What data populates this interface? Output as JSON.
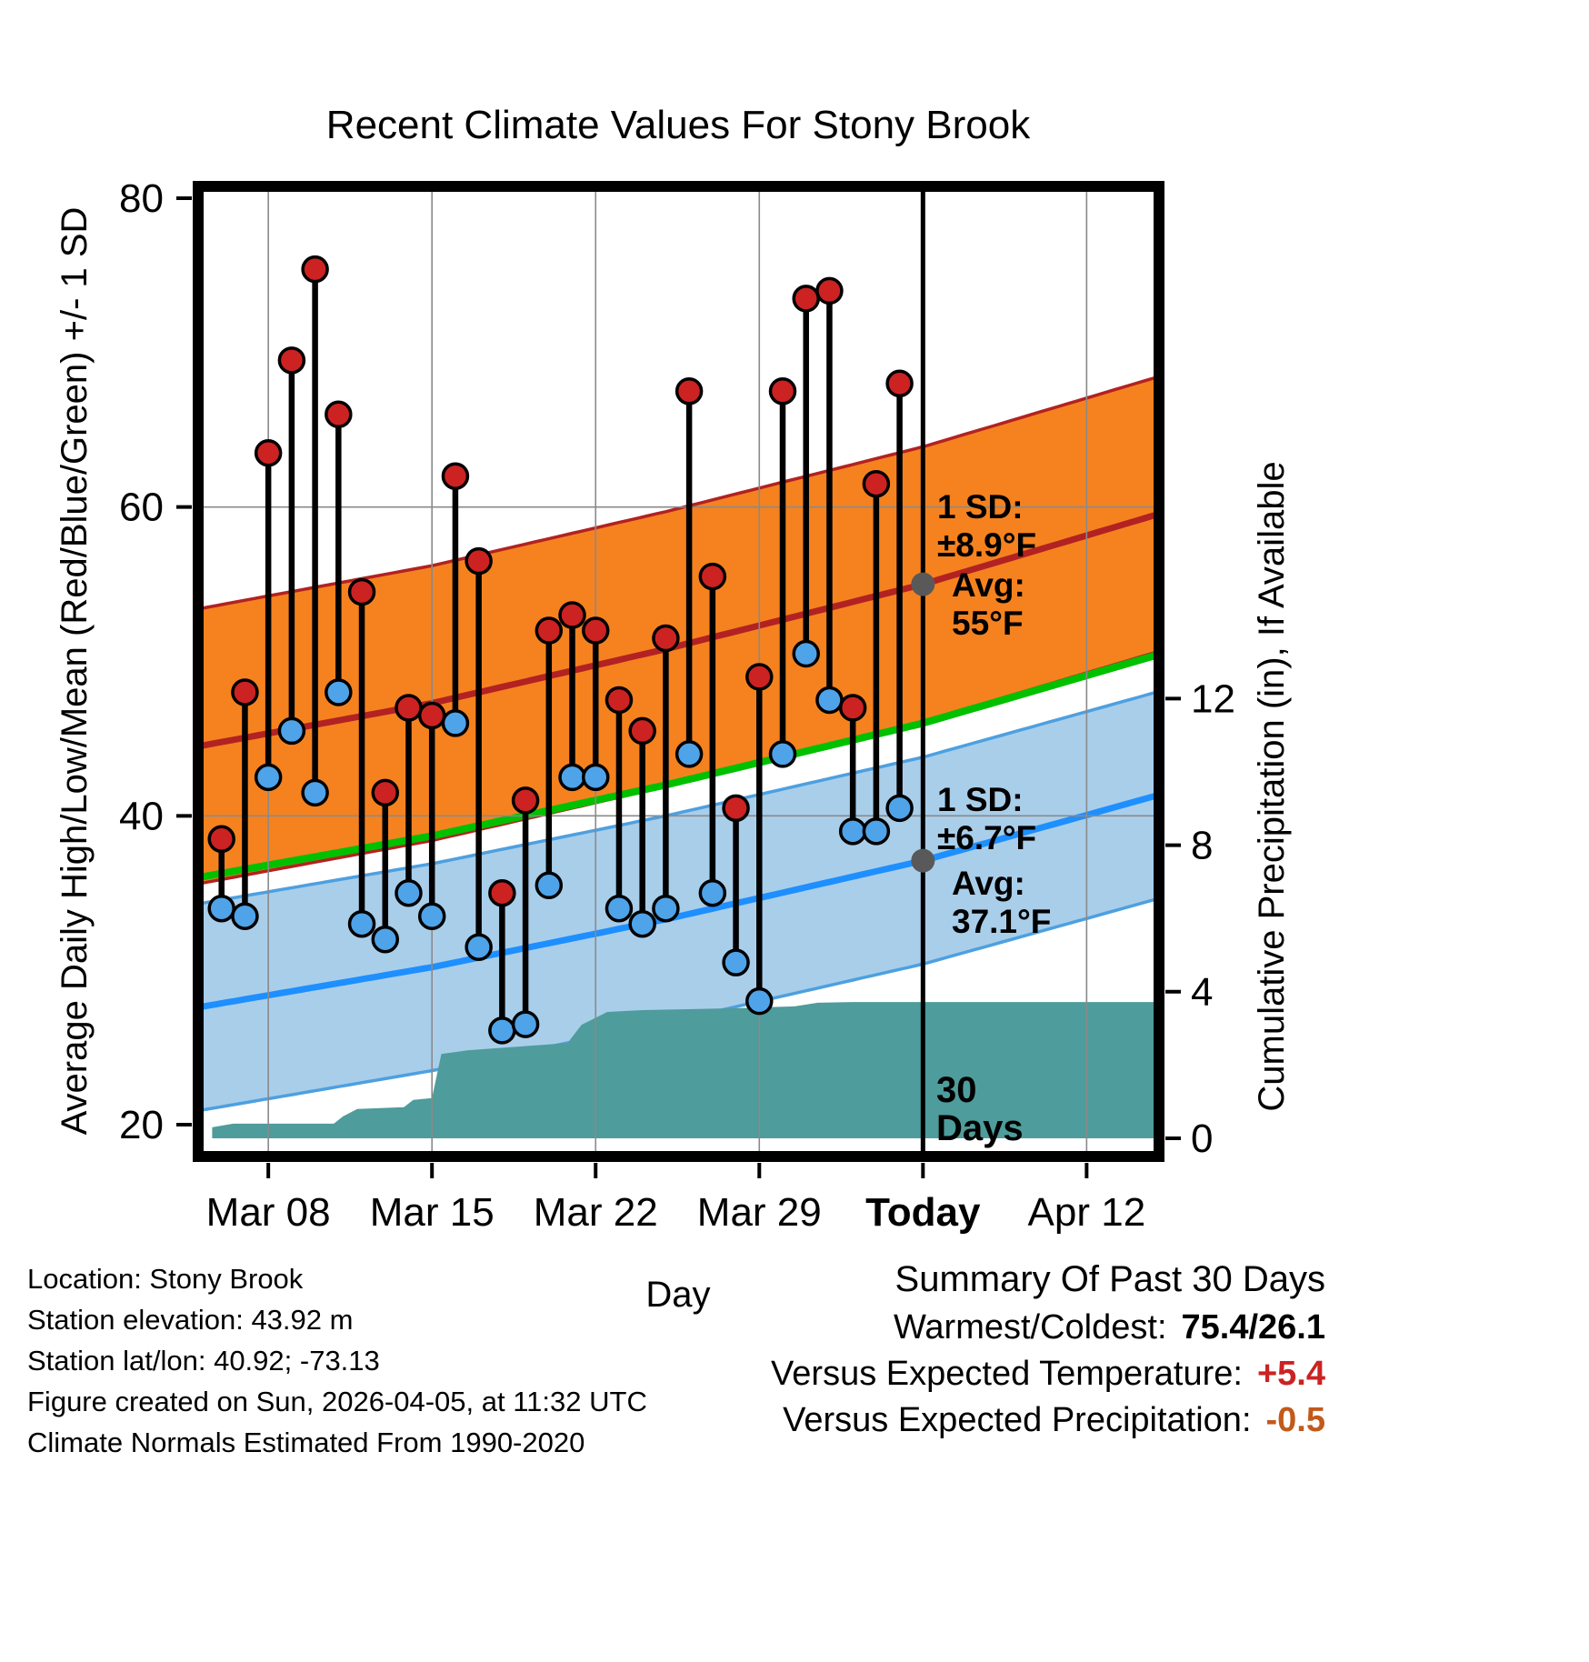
{
  "chart_data": {
    "type": "line",
    "title": "Recent Climate Values For Stony Brook",
    "xlabel": "Day",
    "ylabel_left": "Average Daily High/Low/Mean (Red/Blue/Green) +/- 1 SD",
    "ylabel_right": "Cumulative Precipitation (in), If Available",
    "temp_axis_range": [
      18,
      81
    ],
    "precip_axis_range": [
      0,
      13
    ],
    "left_ticks": [
      "20",
      "40",
      "60",
      "80"
    ],
    "right_ticks": [
      "0",
      "4",
      "8",
      "12"
    ],
    "x_ticks": [
      {
        "day": 3,
        "label": "Mar 08",
        "bold": false
      },
      {
        "day": 10,
        "label": "Mar 15",
        "bold": false
      },
      {
        "day": 17,
        "label": "Mar 22",
        "bold": false
      },
      {
        "day": 24,
        "label": "Mar 29",
        "bold": false
      },
      {
        "day": 31,
        "label": "Today",
        "bold": true
      },
      {
        "day": 38,
        "label": "Apr 12",
        "bold": false
      }
    ],
    "daily": {
      "days": [
        1,
        2,
        3,
        4,
        5,
        6,
        7,
        8,
        9,
        10,
        11,
        12,
        13,
        14,
        15,
        16,
        17,
        18,
        19,
        20,
        21,
        22,
        23,
        24,
        25,
        26,
        27,
        28,
        29,
        30
      ],
      "high": [
        38.5,
        48,
        63.5,
        69.5,
        75.4,
        66,
        54.5,
        41.5,
        47,
        46.5,
        62,
        56.5,
        35,
        41,
        52,
        53,
        52,
        47.5,
        45.5,
        51.5,
        67.5,
        55.5,
        40.5,
        49,
        67.5,
        73.5,
        74,
        47,
        61.5,
        68
      ],
      "low": [
        34,
        33.5,
        42.5,
        45.5,
        41.5,
        48,
        33,
        32,
        35,
        33.5,
        46,
        31.5,
        26.1,
        26.5,
        35.5,
        42.5,
        42.5,
        34,
        33,
        34,
        44,
        35,
        30.5,
        28,
        44,
        50.5,
        47.5,
        39,
        39,
        40.5
      ]
    },
    "normals": {
      "high_sd": 8.9,
      "low_sd": 6.7,
      "high_avg_points": [
        [
          0,
          44.5
        ],
        [
          10,
          47.3
        ],
        [
          20,
          50.8
        ],
        [
          31,
          55.0
        ],
        [
          41.2,
          59.6
        ]
      ],
      "low_avg_points": [
        [
          0,
          27.6
        ],
        [
          10,
          30.2
        ],
        [
          20,
          33.3
        ],
        [
          31,
          37.1
        ],
        [
          41.2,
          41.4
        ]
      ],
      "mean_points": [
        [
          0,
          36.0
        ],
        [
          10,
          38.7
        ],
        [
          20,
          42.0
        ],
        [
          31,
          46.0
        ],
        [
          41.2,
          50.5
        ]
      ]
    },
    "precip_cumulative": [
      [
        0.6,
        0.3
      ],
      [
        1.5,
        0.4
      ],
      [
        5.8,
        0.4
      ],
      [
        6.2,
        0.6
      ],
      [
        6.8,
        0.8
      ],
      [
        8.8,
        0.85
      ],
      [
        9.2,
        1.05
      ],
      [
        10.0,
        1.1
      ],
      [
        10.4,
        2.3
      ],
      [
        11.5,
        2.4
      ],
      [
        15.8,
        2.6
      ],
      [
        16.4,
        3.1
      ],
      [
        17.5,
        3.45
      ],
      [
        19,
        3.5
      ],
      [
        23,
        3.55
      ],
      [
        25.5,
        3.6
      ],
      [
        26.5,
        3.7
      ],
      [
        28,
        3.72
      ],
      [
        41.2,
        3.72
      ]
    ],
    "annotations": {
      "high": {
        "sd_lines": [
          "1 SD:",
          "±8.9°F"
        ],
        "avg_lines": [
          "Avg:",
          "55°F"
        ],
        "avg_value": 55
      },
      "low": {
        "sd_lines": [
          "1 SD:",
          "±6.7°F"
        ],
        "avg_lines": [
          "Avg:",
          "37.1°F"
        ],
        "avg_value": 37.1
      },
      "period_lines": [
        "30",
        "Days"
      ]
    }
  },
  "footer_left": [
    "Location: Stony Brook",
    "Station elevation: 43.92 m",
    "Station lat/lon: 40.92; -73.13",
    "Figure created on Sun, 2026-04-05, at 11:32 UTC",
    "Climate Normals Estimated From 1990-2020"
  ],
  "summary": {
    "title": "Summary Of Past 30 Days",
    "rows": [
      {
        "label": "Warmest/Coldest:",
        "value": "75.4/26.1",
        "value_color": "#000000"
      },
      {
        "label": "Versus Expected Temperature:",
        "value": "+5.4",
        "value_color": "#CC2222"
      },
      {
        "label": "Versus Expected Precipitation:",
        "value": "-0.5",
        "value_color": "#C25A1A"
      }
    ]
  },
  "colors": {
    "high_band": "#F5821F",
    "high_band_edge": "#B22222",
    "high_line": "#B22222",
    "mean_line": "#00C000",
    "low_band": "#A9CEEA",
    "low_band_edge": "#4DA0E0",
    "low_line": "#1E8FFF",
    "precip_fill": "#4E9C9C",
    "high_dot": "#CC2222",
    "low_dot": "#4FA3E8",
    "stem": "#000000",
    "grid": "#8A8A8A",
    "today_line": "#000000",
    "annotation": "#6E6E6E",
    "marker": "#595959"
  }
}
